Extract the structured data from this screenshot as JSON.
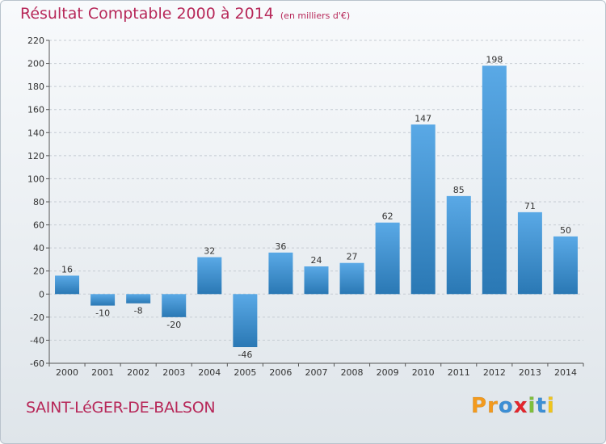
{
  "title": "Résultat Comptable 2000 à 2014",
  "subtitle": "(en milliers d'€)",
  "town": "SAINT-LéGER-DE-BALSON",
  "logo": {
    "letters": [
      "P",
      "r",
      "o",
      "x",
      "i",
      "t",
      "i"
    ],
    "colors": [
      "#f39a1d",
      "#f39a1d",
      "#3c8fd6",
      "#e4262d",
      "#7fbf3c",
      "#3c8fd6",
      "#f0c51c"
    ]
  },
  "colors": {
    "bar_light": "#5aa9e6",
    "bar_dark": "#2a78b4",
    "title": "#b72859"
  },
  "chart_data": {
    "type": "bar",
    "title": "Résultat Comptable 2000 à 2014",
    "ylabel": "en milliers d'€",
    "categories": [
      "2000",
      "2001",
      "2002",
      "2003",
      "2004",
      "2005",
      "2006",
      "2007",
      "2008",
      "2009",
      "2010",
      "2011",
      "2012",
      "2013",
      "2014"
    ],
    "values": [
      16,
      -10,
      -8,
      -20,
      32,
      -46,
      36,
      24,
      27,
      62,
      147,
      85,
      198,
      71,
      50
    ],
    "ylim": [
      -60,
      220
    ],
    "yticks": [
      -60,
      -40,
      -20,
      0,
      20,
      40,
      60,
      80,
      100,
      120,
      140,
      160,
      180,
      200,
      220
    ],
    "grid": true
  }
}
